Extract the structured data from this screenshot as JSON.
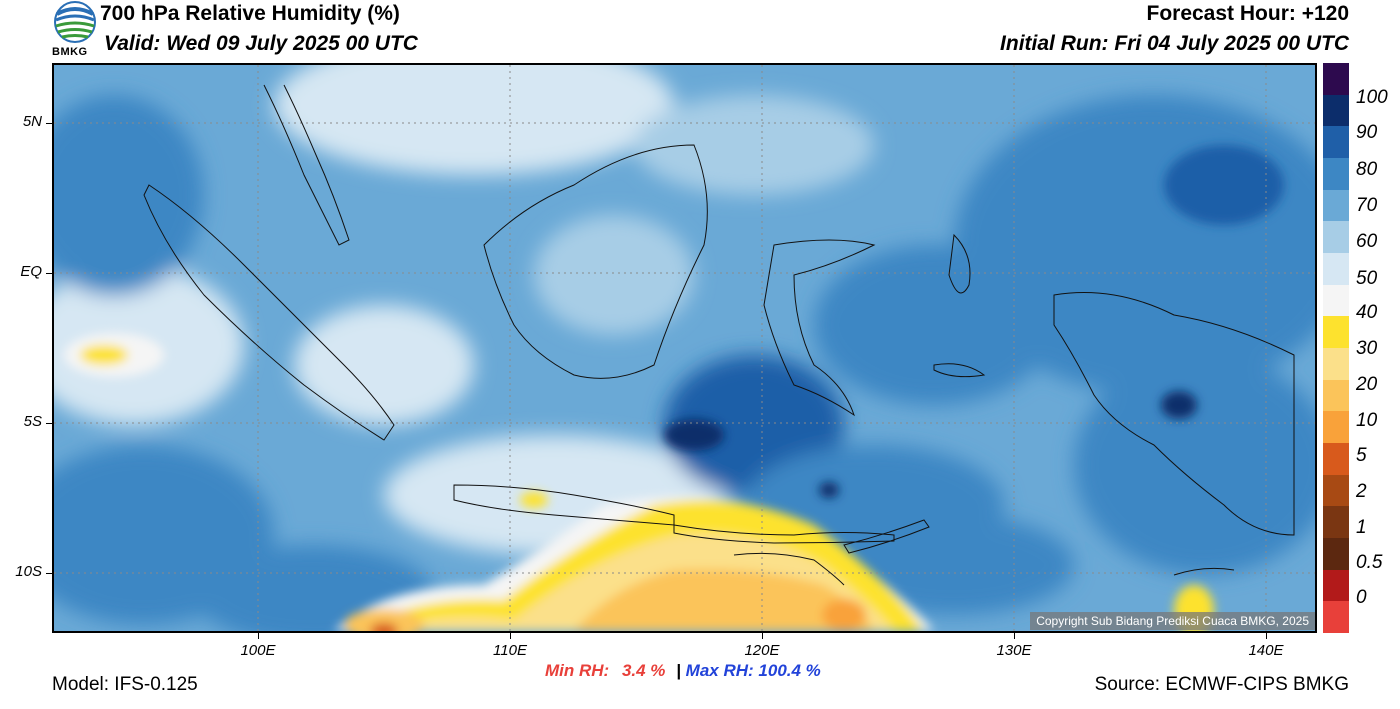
{
  "header": {
    "title": "700 hPa Relative Humidity (%)",
    "valid": "Valid: Wed 09 July 2025 00 UTC",
    "forecast_hour": "Forecast Hour: +120",
    "initial_run": "Initial Run: Fri 04 July 2025 00 UTC",
    "logo_text": "BMKG"
  },
  "axes": {
    "lat_labels": [
      "5N",
      "EQ",
      "5S",
      "10S"
    ],
    "lon_labels": [
      "100E",
      "110E",
      "120E",
      "130E",
      "140E"
    ]
  },
  "colorbar": {
    "labels": [
      "100",
      "90",
      "80",
      "70",
      "60",
      "50",
      "40",
      "30",
      "20",
      "10",
      "5",
      "2",
      "1",
      "0.5",
      "0"
    ],
    "colors": [
      "#2d0a4e",
      "#0c2d6b",
      "#1f5fa8",
      "#3d87c4",
      "#6aa9d6",
      "#a7cde6",
      "#d6e7f3",
      "#f5f5f5",
      "#fde22e",
      "#fbe08a",
      "#fbc45a",
      "#f9a23a",
      "#d85a1c",
      "#a84a14",
      "#7a3612",
      "#5c2810",
      "#b21a1a",
      "#e8403a"
    ]
  },
  "copyright": "Copyright Sub Bidang Prediksi Cuaca BMKG, 2025",
  "stats": {
    "min_label": "Min RH:",
    "min_value": "3.4 %",
    "separator": "|",
    "max_label": "Max RH:",
    "max_value": "100.4 %"
  },
  "footer": {
    "model": "Model: IFS-0.125",
    "source": "Source: ECMWF-CIPS BMKG"
  }
}
